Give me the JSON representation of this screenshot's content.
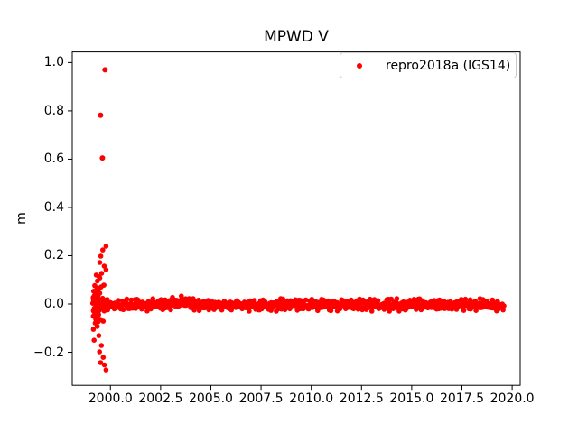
{
  "figure": {
    "title": "MPWD V",
    "ylabel": "m",
    "background_color": "#ffffff",
    "text_color": "#000000",
    "legend": {
      "label": "repro2018a (IGS14)",
      "marker_color": "#ff0000",
      "position": "upper right"
    }
  },
  "chart_data": {
    "type": "scatter",
    "title": "MPWD V",
    "xlabel": "",
    "ylabel": "m",
    "grid": false,
    "legend_position": "upper right",
    "xlim": [
      1998.1,
      2020.4
    ],
    "ylim": [
      -0.337,
      1.044
    ],
    "xticks": [
      2000.0,
      2002.5,
      2005.0,
      2007.5,
      2010.0,
      2012.5,
      2015.0,
      2017.5,
      2020.0
    ],
    "xtick_labels": [
      "2000.0",
      "2002.5",
      "2005.0",
      "2007.5",
      "2010.0",
      "2012.5",
      "2015.0",
      "2017.5",
      "2020.0"
    ],
    "yticks": [
      -0.2,
      0.0,
      0.2,
      0.4,
      0.6,
      0.8,
      1.0
    ],
    "ytick_labels": [
      "−0.2",
      "0.0",
      "0.2",
      "0.4",
      "0.6",
      "0.8",
      "1.0"
    ],
    "series": [
      {
        "name": "repro2018a (IGS14)",
        "color": "#ff0000",
        "marker": "dot",
        "marker_radius_px": 2.8,
        "outlier_points": [
          [
            1999.73,
            0.97
          ],
          [
            1999.51,
            0.782
          ],
          [
            1999.6,
            0.605
          ]
        ],
        "chain_points": [
          [
            1999.78,
            0.239
          ],
          [
            1999.62,
            0.224
          ],
          [
            1999.52,
            0.198
          ],
          [
            1999.47,
            0.172
          ],
          [
            1999.69,
            0.157
          ],
          [
            1999.78,
            0.142
          ],
          [
            1999.56,
            0.127
          ],
          [
            1999.47,
            0.108
          ],
          [
            1999.24,
            -0.079
          ],
          [
            1999.15,
            -0.105
          ],
          [
            1999.42,
            -0.131
          ],
          [
            1999.19,
            -0.15
          ],
          [
            1999.55,
            -0.172
          ],
          [
            1999.46,
            -0.198
          ],
          [
            1999.64,
            -0.221
          ],
          [
            1999.51,
            -0.243
          ],
          [
            1999.7,
            -0.252
          ],
          [
            1999.78,
            -0.273
          ]
        ],
        "cluster": {
          "n": 60,
          "x_center": 1999.35,
          "x_sd": 0.17,
          "x_range": [
            1998.95,
            1999.95
          ],
          "y_mean": 0.0,
          "y_sd": 0.048,
          "y_range": [
            -0.105,
            0.12
          ]
        },
        "band": {
          "n": 950,
          "x_start": 1999.45,
          "x_end": 2019.58,
          "x_jitter": 0.012,
          "y_mean": -0.004,
          "y_sd": 0.011,
          "y_clamp": 0.026,
          "bump": {
            "x_range": [
              2002.7,
              2004.4
            ],
            "dy": 0.011
          },
          "end_dip": {
            "x_range": [
              2019.1,
              2019.58
            ],
            "dy": -0.009
          }
        }
      }
    ]
  }
}
